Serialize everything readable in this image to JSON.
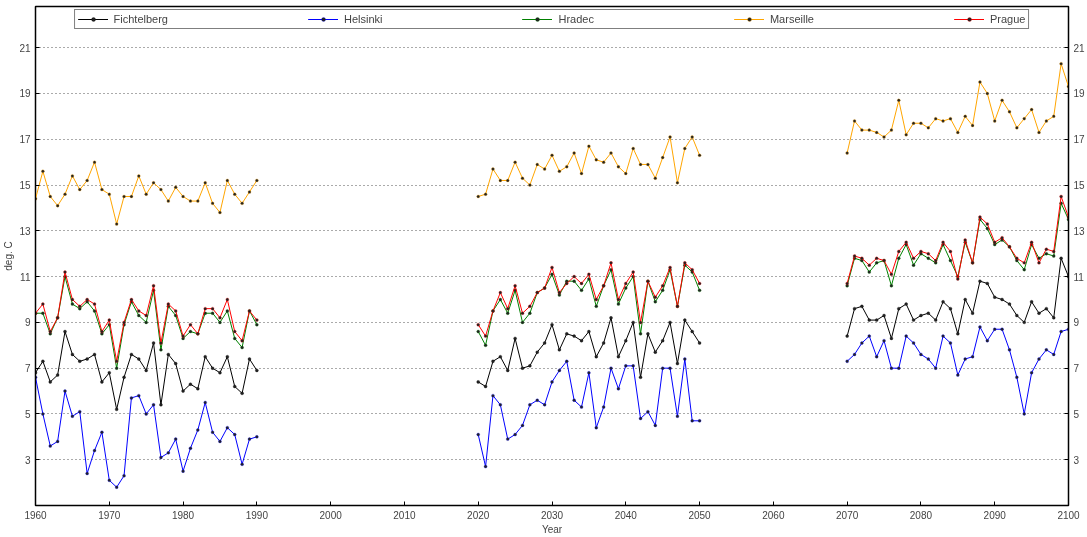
{
  "chart_data": {
    "type": "line",
    "xlabel": "Year",
    "ylabel": "deg. C",
    "x": [
      1960,
      1961,
      1962,
      1963,
      1964,
      1965,
      1966,
      1967,
      1968,
      1969,
      1970,
      1971,
      1972,
      1973,
      1974,
      1975,
      1976,
      1977,
      1978,
      1979,
      1980,
      1981,
      1982,
      1983,
      1984,
      1985,
      1986,
      1987,
      1988,
      1989,
      1990,
      1991,
      2020,
      2021,
      2022,
      2023,
      2024,
      2025,
      2026,
      2027,
      2028,
      2029,
      2030,
      2031,
      2032,
      2033,
      2034,
      2035,
      2036,
      2037,
      2038,
      2039,
      2040,
      2041,
      2042,
      2043,
      2044,
      2045,
      2046,
      2047,
      2048,
      2049,
      2050,
      2051,
      2070,
      2071,
      2072,
      2073,
      2074,
      2075,
      2076,
      2077,
      2078,
      2079,
      2080,
      2081,
      2082,
      2083,
      2084,
      2085,
      2086,
      2087,
      2088,
      2089,
      2090,
      2091,
      2092,
      2093,
      2094,
      2095,
      2096,
      2097,
      2098,
      2099,
      2100
    ],
    "series": [
      {
        "name": "Fichtelberg",
        "color": "#000000",
        "values": [
          6.8,
          7.3,
          6.4,
          6.7,
          8.6,
          7.6,
          7.3,
          7.4,
          7.6,
          6.4,
          6.8,
          5.2,
          6.6,
          7.6,
          7.4,
          6.9,
          8.1,
          5.4,
          7.6,
          7.2,
          6.0,
          6.3,
          6.1,
          7.5,
          7.0,
          6.8,
          7.5,
          6.2,
          5.9,
          7.4,
          6.9,
          null,
          6.4,
          6.2,
          7.3,
          7.5,
          6.9,
          8.3,
          7.0,
          7.1,
          7.7,
          8.1,
          8.9,
          7.8,
          8.5,
          8.4,
          8.2,
          8.6,
          7.5,
          8.1,
          9.2,
          7.5,
          8.2,
          9.0,
          6.6,
          8.5,
          7.7,
          8.2,
          9.0,
          7.2,
          9.1,
          8.6,
          8.1,
          null,
          8.4,
          9.6,
          9.7,
          9.1,
          9.1,
          9.3,
          8.3,
          9.6,
          9.8,
          9.1,
          9.3,
          9.4,
          9.1,
          9.9,
          9.6,
          8.5,
          10.0,
          9.4,
          10.8,
          10.7,
          10.1,
          10.0,
          9.8,
          9.3,
          9.0,
          9.9,
          9.4,
          9.6,
          9.2,
          11.8,
          11.0
        ]
      },
      {
        "name": "Helsinki",
        "color": "#0000ff",
        "values": [
          6.6,
          5.0,
          3.6,
          3.8,
          6.0,
          4.9,
          5.1,
          2.4,
          3.4,
          4.2,
          2.1,
          1.8,
          2.3,
          5.7,
          5.8,
          5.0,
          5.4,
          3.1,
          3.3,
          3.9,
          2.5,
          3.5,
          4.3,
          5.5,
          4.2,
          3.8,
          4.4,
          4.1,
          2.8,
          3.9,
          4.0,
          null,
          4.1,
          2.7,
          5.8,
          5.4,
          3.9,
          4.1,
          4.5,
          5.4,
          5.6,
          5.4,
          6.4,
          6.9,
          7.3,
          5.6,
          5.3,
          6.8,
          4.4,
          5.3,
          7.0,
          6.1,
          7.1,
          7.1,
          4.8,
          5.1,
          4.5,
          7.0,
          7.0,
          4.9,
          7.4,
          4.7,
          4.7,
          null,
          7.3,
          7.6,
          8.1,
          8.4,
          7.5,
          8.2,
          7.0,
          7.0,
          8.4,
          8.1,
          7.6,
          7.4,
          7.0,
          8.4,
          8.1,
          6.7,
          7.4,
          7.5,
          8.8,
          8.2,
          8.7,
          8.7,
          7.8,
          6.6,
          5.0,
          6.8,
          7.4,
          7.8,
          7.6,
          8.6,
          8.7
        ]
      },
      {
        "name": "Hradec",
        "color": "#008000",
        "values": [
          9.4,
          9.4,
          8.5,
          9.2,
          11.0,
          9.8,
          9.6,
          9.9,
          9.5,
          8.5,
          8.9,
          7.0,
          8.9,
          9.9,
          9.3,
          9.0,
          10.4,
          7.8,
          9.7,
          9.3,
          8.3,
          8.6,
          8.5,
          9.4,
          9.4,
          9.0,
          9.5,
          8.3,
          7.9,
          9.5,
          8.9,
          null,
          8.6,
          8.0,
          9.5,
          10.0,
          9.4,
          10.4,
          9.0,
          9.4,
          10.3,
          10.5,
          11.1,
          10.2,
          10.8,
          10.8,
          10.4,
          10.9,
          9.7,
          10.6,
          11.3,
          9.8,
          10.5,
          11.0,
          8.5,
          10.8,
          9.9,
          10.4,
          11.3,
          9.7,
          11.5,
          11.2,
          10.4,
          null,
          10.6,
          11.8,
          11.7,
          11.2,
          11.6,
          11.7,
          10.6,
          11.8,
          12.4,
          11.5,
          12.0,
          11.8,
          11.6,
          12.4,
          11.7,
          11.0,
          12.5,
          11.6,
          13.5,
          13.1,
          12.4,
          12.6,
          12.3,
          11.7,
          11.3,
          12.4,
          11.8,
          12.0,
          11.9,
          14.2,
          13.5
        ]
      },
      {
        "name": "Marseille",
        "color": "#ffa500",
        "values": [
          14.4,
          15.6,
          14.5,
          14.1,
          14.6,
          15.4,
          14.8,
          15.2,
          16.0,
          14.8,
          14.6,
          13.3,
          14.5,
          14.5,
          15.4,
          14.6,
          15.1,
          14.8,
          14.3,
          14.9,
          14.5,
          14.3,
          14.3,
          15.1,
          14.2,
          13.8,
          15.2,
          14.6,
          14.2,
          14.7,
          15.2,
          null,
          14.5,
          14.6,
          15.7,
          15.2,
          15.2,
          16.0,
          15.3,
          15.0,
          15.9,
          15.7,
          16.3,
          15.6,
          15.8,
          16.4,
          15.5,
          16.7,
          16.1,
          16.0,
          16.4,
          15.8,
          15.5,
          16.6,
          15.9,
          15.9,
          15.3,
          16.2,
          17.1,
          15.1,
          16.6,
          17.1,
          16.3,
          null,
          16.4,
          17.8,
          17.4,
          17.4,
          17.3,
          17.1,
          17.4,
          18.7,
          17.2,
          17.7,
          17.7,
          17.5,
          17.9,
          17.8,
          17.9,
          17.3,
          18.0,
          17.6,
          19.5,
          19.0,
          17.8,
          18.7,
          18.2,
          17.5,
          17.9,
          18.3,
          17.3,
          17.8,
          18.0,
          20.3,
          19.3
        ]
      },
      {
        "name": "Prague",
        "color": "#ff0000",
        "values": [
          9.4,
          9.8,
          8.6,
          9.2,
          11.2,
          10.0,
          9.7,
          10.0,
          9.8,
          8.6,
          9.1,
          7.3,
          9.0,
          10.0,
          9.5,
          9.3,
          10.6,
          8.1,
          9.8,
          9.5,
          8.4,
          8.9,
          8.5,
          9.6,
          9.6,
          9.2,
          10.0,
          8.6,
          8.2,
          9.5,
          9.1,
          null,
          8.9,
          8.4,
          9.5,
          10.3,
          9.6,
          10.6,
          9.4,
          9.7,
          10.3,
          10.5,
          11.4,
          10.3,
          10.7,
          11.0,
          10.7,
          11.1,
          10.0,
          10.6,
          11.6,
          10.0,
          10.7,
          11.2,
          9.0,
          10.8,
          10.1,
          10.6,
          11.4,
          9.7,
          11.6,
          11.3,
          10.7,
          null,
          10.7,
          11.9,
          11.8,
          11.5,
          11.8,
          11.7,
          11.1,
          12.1,
          12.5,
          11.8,
          12.1,
          12.0,
          11.7,
          12.5,
          12.1,
          10.9,
          12.6,
          11.6,
          13.6,
          13.3,
          12.5,
          12.7,
          12.3,
          11.8,
          11.6,
          12.5,
          11.6,
          12.2,
          12.1,
          14.5,
          13.6
        ]
      }
    ],
    "xlim": [
      1960,
      2100
    ],
    "xticks": [
      1960,
      1970,
      1980,
      1990,
      2000,
      2010,
      2020,
      2030,
      2040,
      2050,
      2060,
      2070,
      2080,
      2090,
      2100
    ],
    "ylim": [
      1.0,
      22.8
    ],
    "yticks": [
      3,
      5,
      7,
      9,
      11,
      13,
      15,
      17,
      19,
      21
    ],
    "y2lim": [
      1.0,
      22.8
    ],
    "y2ticks": [
      3,
      5,
      7,
      9,
      11,
      13,
      15,
      17,
      19,
      21
    ],
    "grid": "y",
    "legend": "top",
    "marker": "circle",
    "line_style": "solid"
  }
}
